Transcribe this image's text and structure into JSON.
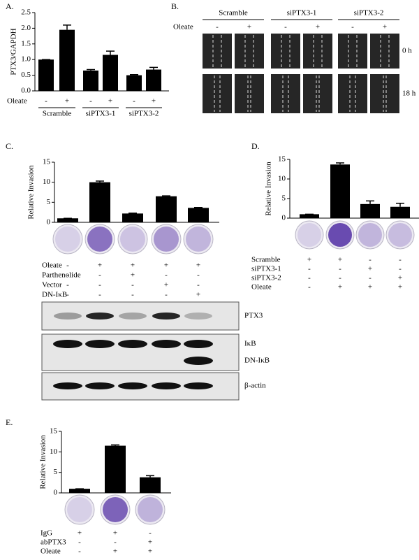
{
  "chart_data": [
    {
      "type": "bar",
      "panel_label": "A.",
      "y_label": "PTX3/GAPDH",
      "color": "#000000",
      "values": [
        1.0,
        1.95,
        0.65,
        1.15,
        0.5,
        0.68
      ],
      "errors": [
        0,
        0.15,
        0.03,
        0.12,
        0.02,
        0.07
      ],
      "ylim": [
        0,
        2.5
      ],
      "yticks": [
        {
          "value": 0,
          "label": "0.0"
        },
        0.5,
        {
          "value": 1,
          "label": "1.0"
        },
        1.5,
        {
          "value": 2,
          "label": "2.0"
        },
        2.5
      ],
      "conditions": [
        {
          "name": "Oleate",
          "signs": [
            "-",
            "+",
            "-",
            "+",
            "-",
            "+"
          ]
        }
      ],
      "groups": [
        "Scramble",
        "siPTX3-1",
        "siPTX3-2"
      ]
    },
    {
      "type": "bar",
      "panel_label": "C.",
      "y_label": "Relative Invasion",
      "color": "#000000",
      "values": [
        1,
        10,
        2.2,
        6.5,
        3.6
      ],
      "errors": [
        0,
        0.3,
        0.1,
        0.1,
        0.1
      ],
      "ylim": [
        0,
        15
      ],
      "yticks": [
        0,
        5,
        10,
        15
      ],
      "conditions": [
        {
          "name": "Oleate",
          "signs": [
            "-",
            "+",
            "+",
            "+",
            "+"
          ]
        },
        {
          "name": "Parthenolide",
          "signs": [
            "-",
            "-",
            "+",
            "-",
            "-"
          ]
        },
        {
          "name": "Vector",
          "signs": [
            "-",
            "-",
            "-",
            "+",
            "-"
          ]
        },
        {
          "name": "DN-IκB",
          "signs": [
            "-",
            "-",
            "-",
            "-",
            "+"
          ]
        }
      ]
    },
    {
      "type": "bar",
      "panel_label": "D.",
      "y_label": "Relative Invasion",
      "color": "#000000",
      "values": [
        1,
        13.7,
        3.6,
        2.9
      ],
      "errors": [
        0,
        0.4,
        0.8,
        0.9
      ],
      "ylim": [
        0,
        15
      ],
      "yticks": [
        0,
        5,
        10,
        15
      ],
      "conditions": [
        {
          "name": "Scramble",
          "signs": [
            "+",
            "+",
            "-",
            "-"
          ]
        },
        {
          "name": "siPTX3-1",
          "signs": [
            "-",
            "-",
            "+",
            "-"
          ]
        },
        {
          "name": "siPTX3-2",
          "signs": [
            "-",
            "-",
            "-",
            "+"
          ]
        },
        {
          "name": "Oleate",
          "signs": [
            "-",
            "+",
            "+",
            "+"
          ]
        }
      ]
    },
    {
      "type": "bar",
      "panel_label": "E.",
      "y_label": "Relative Invasion",
      "color": "#000000",
      "values": [
        1,
        11.5,
        3.8
      ],
      "errors": [
        0,
        0.2,
        0.4
      ],
      "ylim": [
        0,
        15
      ],
      "yticks": [
        0,
        5,
        10,
        15
      ],
      "conditions": [
        {
          "name": "IgG",
          "signs": [
            "+",
            "+",
            "-"
          ]
        },
        {
          "name": "abPTX3",
          "signs": [
            "-",
            "-",
            "+"
          ]
        },
        {
          "name": "Oleate",
          "signs": [
            "-",
            "+",
            "+"
          ]
        }
      ]
    }
  ],
  "panel_b": {
    "panel_label": "B.",
    "groups": [
      "Scramble",
      "siPTX3-1",
      "siPTX3-2"
    ],
    "condition": {
      "name": "Oleate",
      "signs": [
        "-",
        "+",
        "-",
        "+",
        "-",
        "+"
      ]
    },
    "times": [
      "0 h",
      "18 h"
    ]
  },
  "blot": {
    "labels": [
      "PTX3",
      "IκB",
      "DN-IκB",
      "β-actin"
    ]
  }
}
